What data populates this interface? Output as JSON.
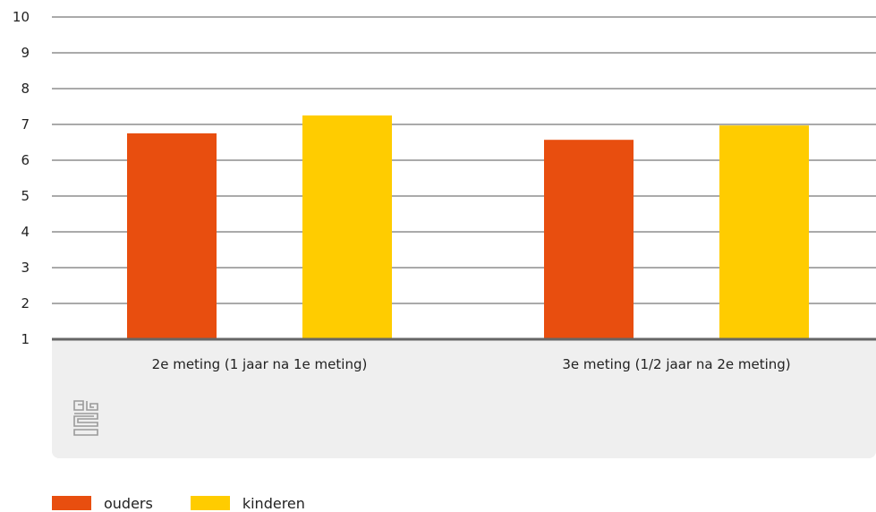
{
  "chart_data": {
    "type": "bar",
    "categories": [
      "2e meting (1 jaar na 1e meting)",
      "3e meting (1/2 jaar na 2e meting)"
    ],
    "series": [
      {
        "name": "ouders",
        "color": "#e84e0f",
        "values": [
          6.75,
          6.57
        ]
      },
      {
        "name": "kinderen",
        "color": "#ffcc00",
        "values": [
          7.25,
          6.97
        ]
      }
    ],
    "ylim": [
      1,
      10
    ],
    "yticks": [
      1,
      2,
      3,
      4,
      5,
      6,
      7,
      8,
      9,
      10
    ],
    "grid": true,
    "legend_position": "bottom-left",
    "title": "",
    "xlabel": "",
    "ylabel": ""
  },
  "logo": {
    "icon": "cbs-logo-icon",
    "text": "cbs"
  },
  "colors": {
    "panel": "#efefef",
    "axis": "#666666",
    "grid": "#555555"
  }
}
